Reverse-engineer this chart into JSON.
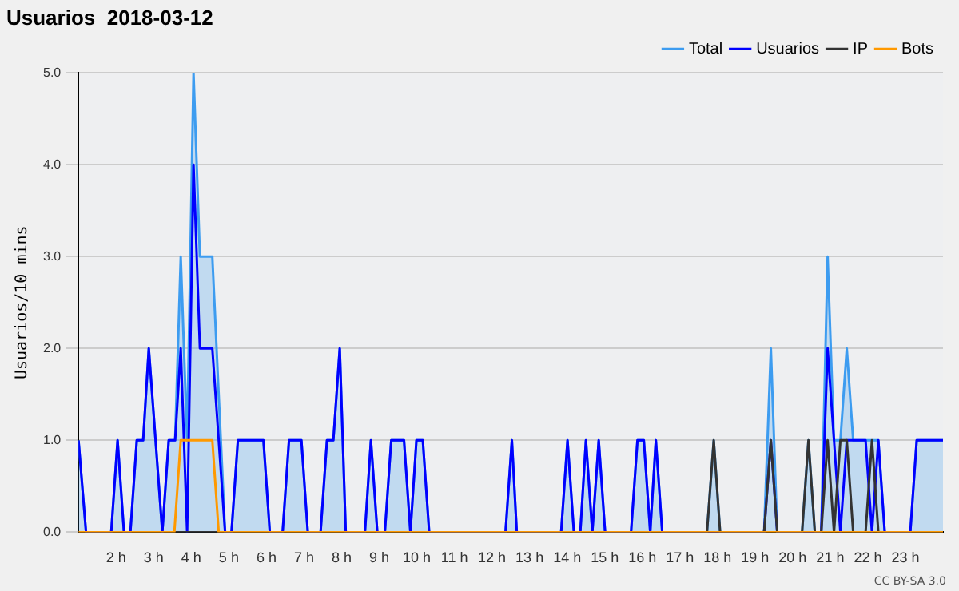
{
  "chart_data": {
    "type": "line",
    "title": "Usuarios  2018-03-12",
    "ylabel": "Usuarios/10 mins",
    "annotations": [
      "CC BY-SA 3.0"
    ],
    "xlim": [
      1,
      24
    ],
    "xticks": [
      {
        "value": 2,
        "label": "2 h"
      },
      {
        "value": 3,
        "label": "3 h"
      },
      {
        "value": 4,
        "label": "4 h"
      },
      {
        "value": 5,
        "label": "5 h"
      },
      {
        "value": 6,
        "label": "6 h"
      },
      {
        "value": 7,
        "label": "7 h"
      },
      {
        "value": 8,
        "label": "8 h"
      },
      {
        "value": 9,
        "label": "9 h"
      },
      {
        "value": 10,
        "label": "10 h"
      },
      {
        "value": 11,
        "label": "11 h"
      },
      {
        "value": 12,
        "label": "12 h"
      },
      {
        "value": 13,
        "label": "13 h"
      },
      {
        "value": 14,
        "label": "14 h"
      },
      {
        "value": 15,
        "label": "15 h"
      },
      {
        "value": 16,
        "label": "16 h"
      },
      {
        "value": 17,
        "label": "17 h"
      },
      {
        "value": 18,
        "label": "18 h"
      },
      {
        "value": 19,
        "label": "19 h"
      },
      {
        "value": 20,
        "label": "20 h"
      },
      {
        "value": 21,
        "label": "21 h"
      },
      {
        "value": 22,
        "label": "22 h"
      },
      {
        "value": 23,
        "label": "23 h"
      }
    ],
    "ylim": [
      0,
      5
    ],
    "yticks": [
      {
        "value": 0,
        "label": "0.0"
      },
      {
        "value": 1,
        "label": "1.0"
      },
      {
        "value": 2,
        "label": "2.0"
      },
      {
        "value": 3,
        "label": "3.0"
      },
      {
        "value": 4,
        "label": "4.0"
      },
      {
        "value": 5,
        "label": "5.0"
      }
    ],
    "grid": "y",
    "legend": "top right",
    "marker": "none",
    "line_style": "solid",
    "series": [
      {
        "name": "Total",
        "type": "area",
        "color": "#3d9cf0",
        "x": [
          1.0,
          1.2,
          1.87,
          2.04,
          2.21,
          2.38,
          2.55,
          2.72,
          2.87,
          3.23,
          3.4,
          3.57,
          3.72,
          3.89,
          4.06,
          4.23,
          4.56,
          4.9,
          5.07,
          5.24,
          5.92,
          6.09,
          6.43,
          6.6,
          6.93,
          7.1,
          7.44,
          7.61,
          7.78,
          7.95,
          8.11,
          8.62,
          8.78,
          8.95,
          9.15,
          9.32,
          9.66,
          9.83,
          9.99,
          10.16,
          10.33,
          12.36,
          12.53,
          12.66,
          13.84,
          14.01,
          14.18,
          14.35,
          14.5,
          14.67,
          14.84,
          15.01,
          15.7,
          15.87,
          16.04,
          16.21,
          16.36,
          16.53,
          17.72,
          17.9,
          18.07,
          19.24,
          19.42,
          19.59,
          20.25,
          20.42,
          20.59,
          20.76,
          20.93,
          21.1,
          21.27,
          21.44,
          21.61,
          21.94,
          22.11,
          22.28,
          22.45,
          23.13,
          23.3,
          24.0
        ],
        "values": [
          1,
          0,
          0,
          1,
          0,
          0,
          1,
          1,
          2,
          0,
          1,
          1,
          3,
          1,
          5,
          3,
          3,
          0,
          0,
          1,
          1,
          0,
          0,
          1,
          1,
          0,
          0,
          1,
          1,
          2,
          0,
          0,
          1,
          0,
          0,
          1,
          1,
          0,
          1,
          1,
          0,
          0,
          1,
          0,
          0,
          1,
          0,
          0,
          1,
          0,
          1,
          0,
          0,
          1,
          1,
          0,
          1,
          0,
          0,
          1,
          0,
          0,
          2,
          0,
          0,
          1,
          0,
          0,
          3,
          1,
          1,
          2,
          1,
          1,
          1,
          1,
          0,
          0,
          1,
          1
        ]
      },
      {
        "name": "Usuarios",
        "type": "line",
        "color": "#0000ff",
        "x": [
          1.0,
          1.2,
          1.87,
          2.04,
          2.21,
          2.38,
          2.55,
          2.72,
          2.87,
          3.23,
          3.4,
          3.57,
          3.72,
          3.89,
          4.06,
          4.23,
          4.56,
          4.9,
          5.07,
          5.24,
          5.92,
          6.09,
          6.43,
          6.6,
          6.93,
          7.1,
          7.44,
          7.61,
          7.78,
          7.95,
          8.11,
          8.62,
          8.78,
          8.95,
          9.15,
          9.32,
          9.66,
          9.83,
          9.99,
          10.16,
          10.33,
          12.36,
          12.53,
          12.66,
          13.84,
          14.01,
          14.18,
          14.35,
          14.5,
          14.67,
          14.84,
          15.01,
          15.7,
          15.87,
          16.04,
          16.21,
          16.36,
          16.53,
          19.24,
          19.42,
          19.59,
          20.76,
          20.93,
          21.1,
          21.27,
          21.44,
          21.94,
          22.11,
          22.28,
          22.45,
          23.13,
          23.3,
          24.0
        ],
        "values": [
          1,
          0,
          0,
          1,
          0,
          0,
          1,
          1,
          2,
          0,
          1,
          1,
          2,
          0,
          4,
          2,
          2,
          0,
          0,
          1,
          1,
          0,
          0,
          1,
          1,
          0,
          0,
          1,
          1,
          2,
          0,
          0,
          1,
          0,
          0,
          1,
          1,
          0,
          1,
          1,
          0,
          0,
          1,
          0,
          0,
          1,
          0,
          0,
          1,
          0,
          1,
          0,
          0,
          1,
          1,
          0,
          1,
          0,
          0,
          1,
          0,
          0,
          2,
          1,
          0,
          1,
          1,
          0,
          1,
          0,
          0,
          1,
          1
        ]
      },
      {
        "name": "IP",
        "type": "line",
        "color": "#333333",
        "x": [
          1.0,
          17.72,
          17.9,
          18.07,
          19.24,
          19.42,
          19.59,
          20.25,
          20.42,
          20.59,
          20.76,
          20.93,
          21.1,
          21.27,
          21.44,
          21.61,
          21.94,
          22.11,
          22.28,
          24.0
        ],
        "values": [
          0,
          0,
          1,
          0,
          0,
          1,
          0,
          0,
          1,
          0,
          0,
          1,
          0,
          1,
          1,
          0,
          0,
          1,
          0,
          0
        ]
      },
      {
        "name": "Bots",
        "type": "line",
        "color": "#ff9900",
        "x": [
          1.0,
          3.55,
          3.72,
          4.56,
          4.73,
          24.0
        ],
        "values": [
          0,
          0,
          1,
          1,
          0,
          0
        ]
      }
    ]
  }
}
